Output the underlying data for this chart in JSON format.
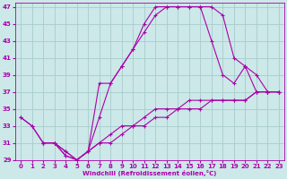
{
  "xlabel": "Windchill (Refroidissement éolien,°C)",
  "bg_color": "#cce8e8",
  "grid_color": "#a8cccc",
  "line_color": "#aa00aa",
  "xlim": [
    -0.5,
    23.5
  ],
  "ylim": [
    29,
    47.5
  ],
  "xticks": [
    0,
    1,
    2,
    3,
    4,
    5,
    6,
    7,
    8,
    9,
    10,
    11,
    12,
    13,
    14,
    15,
    16,
    17,
    18,
    19,
    20,
    21,
    22,
    23
  ],
  "yticks": [
    29,
    31,
    33,
    35,
    37,
    39,
    41,
    43,
    45,
    47
  ],
  "curves": [
    {
      "x": [
        0,
        1,
        2,
        3,
        4,
        5,
        6,
        7,
        8,
        9,
        10,
        11,
        12,
        13,
        14,
        15,
        16,
        17,
        18,
        19,
        20,
        21,
        22,
        23
      ],
      "y": [
        34,
        33,
        31,
        31,
        29.5,
        29,
        30,
        34,
        38,
        40,
        42,
        45,
        47,
        47,
        47,
        47,
        47,
        47,
        46,
        41,
        40,
        37,
        37,
        37
      ]
    },
    {
      "x": [
        2,
        3,
        4,
        5,
        6,
        7,
        8,
        9,
        10,
        11,
        12,
        13,
        14,
        15,
        16,
        17,
        18,
        19,
        20,
        21,
        22,
        23
      ],
      "y": [
        31,
        31,
        29.5,
        29,
        30,
        38,
        38,
        40,
        42,
        44,
        46,
        47,
        47,
        47,
        47,
        43,
        39,
        38,
        40,
        39,
        37,
        37
      ]
    },
    {
      "x": [
        0,
        1,
        2,
        3,
        4,
        5,
        6,
        7,
        8,
        9,
        10,
        11,
        12,
        13,
        14,
        15,
        16,
        17,
        18,
        19,
        20,
        21,
        22,
        23
      ],
      "y": [
        34,
        33,
        31,
        31,
        30,
        29,
        30,
        31,
        32,
        33,
        33,
        34,
        35,
        35,
        35,
        36,
        36,
        36,
        36,
        36,
        36,
        37,
        37,
        37
      ]
    },
    {
      "x": [
        2,
        3,
        4,
        5,
        6,
        7,
        8,
        9,
        10,
        11,
        12,
        13,
        14,
        15,
        16,
        17,
        18,
        19,
        20,
        21,
        22,
        23
      ],
      "y": [
        31,
        31,
        30,
        29,
        30,
        31,
        31,
        32,
        33,
        33,
        34,
        34,
        35,
        35,
        35,
        36,
        36,
        36,
        36,
        37,
        37,
        37
      ]
    }
  ]
}
